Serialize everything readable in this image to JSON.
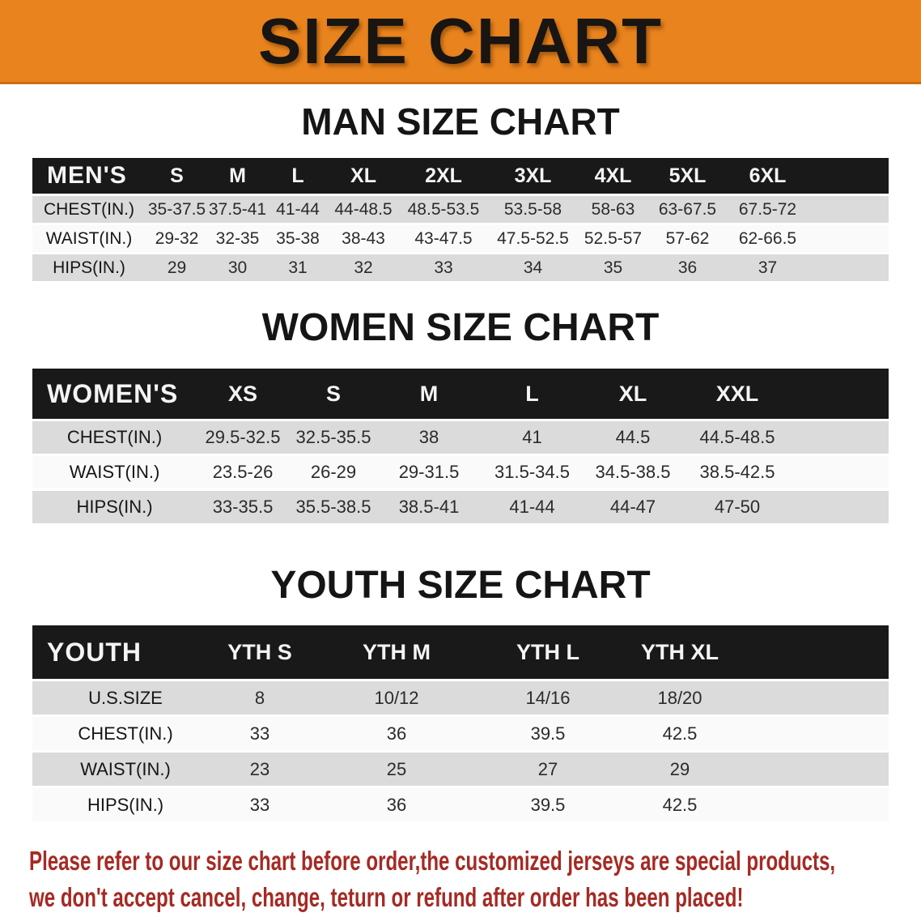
{
  "banner": {
    "title": "SIZE CHART"
  },
  "sections": [
    {
      "title": "MAN SIZE CHART",
      "table": {
        "header_label": "MEN'S",
        "sizes": [
          "S",
          "M",
          "L",
          "XL",
          "2XL",
          "3XL",
          "4XL",
          "5XL",
          "6XL"
        ],
        "rows": [
          {
            "label": "CHEST(IN.)",
            "values": [
              "35-37.5",
              "37.5-41",
              "41-44",
              "44-48.5",
              "48.5-53.5",
              "53.5-58",
              "58-63",
              "63-67.5",
              "67.5-72"
            ]
          },
          {
            "label": "WAIST(IN.)",
            "values": [
              "29-32",
              "32-35",
              "35-38",
              "38-43",
              "43-47.5",
              "47.5-52.5",
              "52.5-57",
              "57-62",
              "62-66.5"
            ]
          },
          {
            "label": "HIPS(IN.)",
            "values": [
              "29",
              "30",
              "31",
              "32",
              "33",
              "34",
              "35",
              "36",
              "37"
            ]
          }
        ]
      }
    },
    {
      "title": "WOMEN SIZE CHART",
      "table": {
        "header_label": "WOMEN'S",
        "sizes": [
          "XS",
          "S",
          "M",
          "L",
          "XL",
          "XXL"
        ],
        "rows": [
          {
            "label": "CHEST(IN.)",
            "values": [
              "29.5-32.5",
              "32.5-35.5",
              "38",
              "41",
              "44.5",
              "44.5-48.5"
            ]
          },
          {
            "label": "WAIST(IN.)",
            "values": [
              "23.5-26",
              "26-29",
              "29-31.5",
              "31.5-34.5",
              "34.5-38.5",
              "38.5-42.5"
            ]
          },
          {
            "label": "HIPS(IN.)",
            "values": [
              "33-35.5",
              "35.5-38.5",
              "38.5-41",
              "41-44",
              "44-47",
              "47-50"
            ]
          }
        ]
      }
    },
    {
      "title": "YOUTH SIZE CHART",
      "table": {
        "header_label": "YOUTH",
        "sizes": [
          "YTH S",
          "YTH M",
          "YTH L",
          "YTH XL"
        ],
        "rows": [
          {
            "label": "U.S.SIZE",
            "values": [
              "8",
              "10/12",
              "14/16",
              "18/20"
            ]
          },
          {
            "label": "CHEST(IN.)",
            "values": [
              "33",
              "36",
              "39.5",
              "42.5"
            ]
          },
          {
            "label": "WAIST(IN.)",
            "values": [
              "23",
              "25",
              "27",
              "29"
            ]
          },
          {
            "label": "HIPS(IN.)",
            "values": [
              "33",
              "36",
              "39.5",
              "42.5"
            ]
          }
        ]
      }
    }
  ],
  "disclaimer": {
    "line1": "Please refer to our size chart before order,the customized jerseys are special products,",
    "line2": "we don't accept cancel, change, teturn or refund after order has been placed!"
  },
  "appearance": {
    "banner_bg": "#E8831D",
    "table_header_bg": "#191919",
    "row_stripe_gray": "#DBDBDB",
    "row_stripe_white": "#FAFAFA",
    "disclaimer_color": "#A52A24"
  }
}
